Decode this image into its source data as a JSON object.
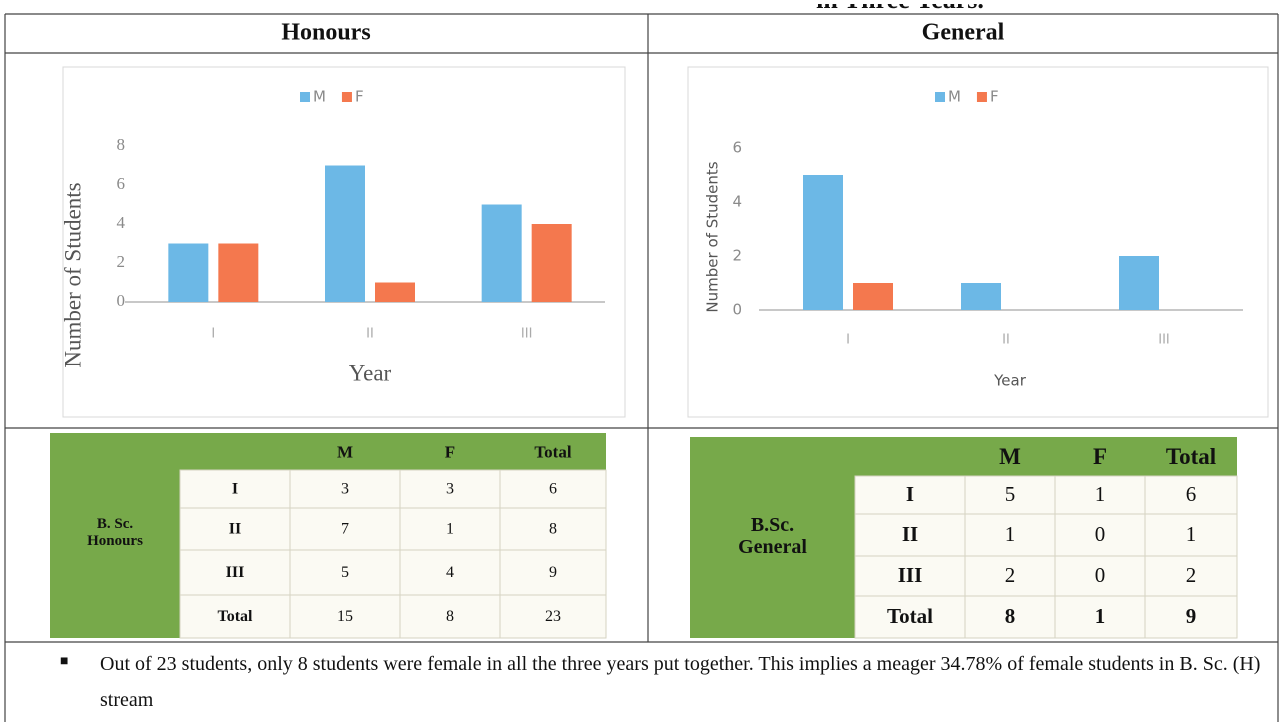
{
  "header": "in Three Years.",
  "chart_data": [
    {
      "type": "bar",
      "heading": "Honours",
      "ylabel": "Number of Students",
      "xlabel": "Year",
      "categories": [
        "I",
        "II",
        "III"
      ],
      "series": [
        {
          "name": "M",
          "color": "#6cb8e6",
          "values": [
            3,
            7,
            5
          ]
        },
        {
          "name": "F",
          "color": "#f4784e",
          "values": [
            3,
            1,
            4
          ]
        }
      ],
      "ylim": [
        0,
        8
      ],
      "yticks": [
        0,
        2,
        4,
        6,
        8
      ],
      "grid": false,
      "legend": "top"
    },
    {
      "type": "bar",
      "heading": "General",
      "ylabel": "Number of Students",
      "xlabel": "Year",
      "categories": [
        "I",
        "II",
        "III"
      ],
      "series": [
        {
          "name": "M",
          "color": "#6cb8e6",
          "values": [
            5,
            1,
            2
          ]
        },
        {
          "name": "F",
          "color": "#f4784e",
          "values": [
            1,
            0,
            0
          ]
        }
      ],
      "ylim": [
        0,
        6
      ],
      "yticks": [
        0,
        2,
        4,
        6
      ],
      "grid": false,
      "legend": "top"
    }
  ],
  "tables": [
    {
      "stub": "B. Sc. Honours",
      "columns": [
        "M",
        "F",
        "Total"
      ],
      "rows": [
        [
          "I",
          3,
          3,
          6
        ],
        [
          "II",
          7,
          1,
          8
        ],
        [
          "III",
          5,
          4,
          9
        ],
        [
          "Total",
          15,
          8,
          23
        ]
      ]
    },
    {
      "stub": "B.Sc. General",
      "columns": [
        "M",
        "F",
        "Total"
      ],
      "rows": [
        [
          "I",
          5,
          1,
          6
        ],
        [
          "II",
          1,
          0,
          1
        ],
        [
          "III",
          2,
          0,
          2
        ],
        [
          "Total",
          8,
          1,
          9
        ]
      ]
    }
  ],
  "bullet": "Out of 23 students, only 8 students were female in all the three years put together. This implies a meager 34.78% of female students in B. Sc. (H) stream"
}
